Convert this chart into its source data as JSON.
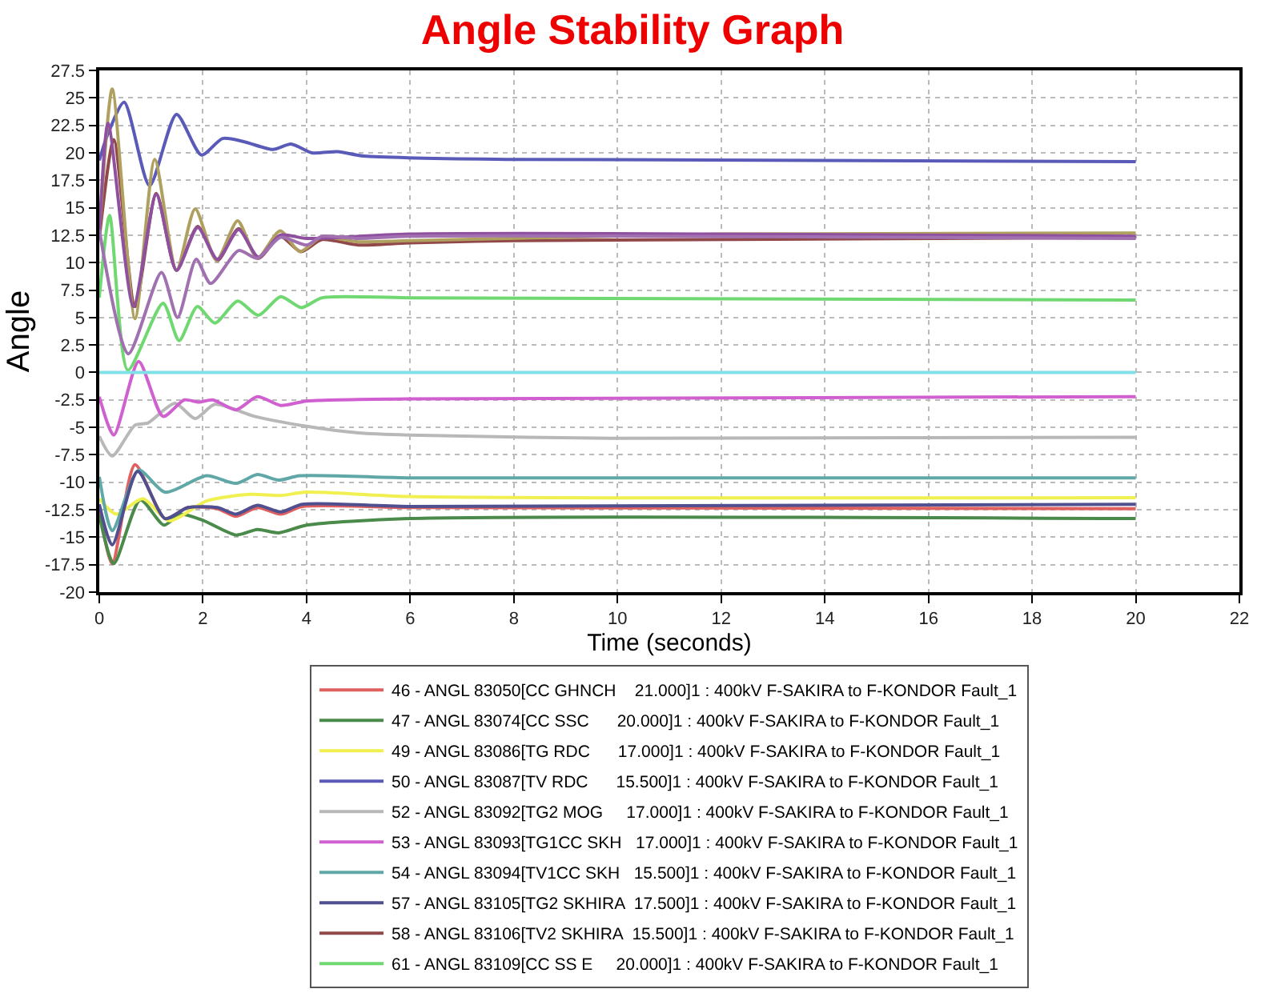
{
  "chart_data": {
    "type": "line",
    "title": "Angle Stability Graph",
    "xlabel": "Time (seconds)",
    "ylabel": "Angle",
    "xlim": [
      0,
      22
    ],
    "xticks": [
      0,
      2,
      4,
      6,
      8,
      10,
      12,
      14,
      16,
      18,
      20,
      22
    ],
    "ylim": [
      -20,
      27.5
    ],
    "yticks": [
      -20,
      -17.5,
      -15,
      -12.5,
      -10,
      -7.5,
      -5,
      -2.5,
      0,
      2.5,
      5,
      7.5,
      10,
      12.5,
      15,
      17.5,
      20,
      22.5,
      25,
      27.5
    ],
    "grid": true,
    "legend": "bottom",
    "marker": "none",
    "line_style": "solid",
    "series": [
      {
        "name": "46 - ANGL 83050[CC GHNCH    21.000]1 : 400kV F-SAKIRA to F-KONDOR Fault_1",
        "color": "#e06060",
        "x": [
          0,
          0.25,
          0.69,
          1.27,
          1.71,
          2.28,
          2.64,
          3.05,
          3.5,
          3.92,
          6,
          20
        ],
        "values": [
          -12.5,
          -17.4,
          -8.4,
          -13.3,
          -12.3,
          -12.4,
          -13.1,
          -12.3,
          -12.9,
          -12.2,
          -12.3,
          -12.4
        ]
      },
      {
        "name": "47 - ANGL 83074[CC SSC      20.000]1 : 400kV F-SAKIRA to F-KONDOR Fault_1",
        "color": "#4a8a4a",
        "x": [
          0,
          0.28,
          0.79,
          1.25,
          1.56,
          2.02,
          2.64,
          3.05,
          3.46,
          4,
          6,
          20
        ],
        "values": [
          -13,
          -17.4,
          -11.6,
          -13.9,
          -12.9,
          -13.5,
          -14.8,
          -14.3,
          -14.6,
          -13.9,
          -13.3,
          -13.3
        ]
      },
      {
        "name": "49 - ANGL 83086[TG RDC      17.000]1 : 400kV F-SAKIRA to F-KONDOR Fault_1",
        "color": "#f0f050",
        "x": [
          0,
          0.33,
          0.84,
          1.35,
          2.07,
          2.9,
          3.5,
          4,
          6,
          20
        ],
        "values": [
          -11.5,
          -12.9,
          -11.5,
          -13.5,
          -11.7,
          -11.1,
          -11.2,
          -10.9,
          -11.3,
          -11.4
        ]
      },
      {
        "name": "50 - ANGL 83087[TV RDC      15.500]1 : 400kV F-SAKIRA to F-KONDOR Fault_1",
        "color": "#5a5ab8",
        "x": [
          0,
          0.15,
          0.48,
          0.97,
          1.49,
          1.97,
          2.38,
          2.8,
          3.35,
          3.7,
          4.1,
          4.6,
          5.1,
          8,
          20
        ],
        "values": [
          19.3,
          21.5,
          24.6,
          17,
          23.5,
          19.8,
          21.3,
          21,
          20.3,
          20.8,
          20,
          20.1,
          19.7,
          19.4,
          19.2
        ]
      },
      {
        "name": "52 - ANGL 83092[TG2 MOG     17.000]1 : 400kV F-SAKIRA to F-KONDOR Fault_1",
        "color": "#b8b8b8",
        "x": [
          0,
          0.25,
          0.69,
          0.94,
          1.46,
          1.85,
          2.23,
          3,
          4,
          5,
          6,
          10,
          20
        ],
        "values": [
          -5.8,
          -7.6,
          -4.8,
          -4.6,
          -2.8,
          -4.2,
          -2.9,
          -4,
          -4.9,
          -5.5,
          -5.7,
          -6,
          -5.9
        ]
      },
      {
        "name": "53 - ANGL 83093[TG1CC SKH   17.000]1 : 400kV F-SAKIRA to F-KONDOR Fault_1",
        "color": "#d060d0",
        "x": [
          0,
          0.28,
          0.76,
          1.23,
          1.64,
          1.92,
          2.19,
          2.64,
          3.05,
          3.5,
          4,
          6,
          20
        ],
        "values": [
          -2.2,
          -5.7,
          1,
          -4,
          -2.5,
          -2.7,
          -2.5,
          -3.4,
          -2.2,
          -3,
          -2.6,
          -2.4,
          -2.2
        ]
      },
      {
        "name": "54 - ANGL 83094[TV1CC SKH   15.500]1 : 400kV F-SAKIRA to F-KONDOR Fault_1",
        "color": "#60a8a8",
        "x": [
          0,
          0.25,
          0.76,
          1.27,
          2.07,
          2.64,
          3.05,
          3.46,
          3.87,
          6,
          20
        ],
        "values": [
          -9.5,
          -14.4,
          -8.9,
          -10.9,
          -9.4,
          -10.1,
          -9.3,
          -9.8,
          -9.4,
          -9.6,
          -9.6
        ]
      },
      {
        "name": "57 - ANGL 83105[TG2 SKHIRA  17.500]1 : 400kV F-SAKIRA to F-KONDOR Fault_1",
        "color": "#505090",
        "x": [
          0,
          0.25,
          0.74,
          1.27,
          1.71,
          2.28,
          2.64,
          3.05,
          3.5,
          3.92,
          6,
          20
        ],
        "values": [
          -12,
          -15.7,
          -9,
          -13.3,
          -12.3,
          -12.3,
          -12.9,
          -12.1,
          -12.7,
          -12,
          -12.2,
          -12
        ]
      },
      {
        "name": "58 - ANGL 83106[TV2 SKHIRA  15.500]1 : 400kV F-SAKIRA to F-KONDOR Fault_1",
        "color": "#904848",
        "x": [
          0,
          0.28,
          0.69,
          1.1,
          1.49,
          1.9,
          2.28,
          2.69,
          3.07,
          3.49,
          3.89,
          4.3,
          5,
          6,
          8,
          20
        ],
        "values": [
          12.2,
          21.2,
          6,
          16.3,
          9.3,
          13.3,
          10.2,
          13.1,
          10.4,
          12.4,
          11,
          12.1,
          11.6,
          11.8,
          12,
          12.3
        ]
      },
      {
        "name": "61 - ANGL 83109[CC SS E     20.000]1 : 400kV F-SAKIRA to F-KONDOR Fault_1",
        "color": "#70d870",
        "x": [
          0,
          0.2,
          0.55,
          1.23,
          1.54,
          1.89,
          2.23,
          2.67,
          3.07,
          3.5,
          3.9,
          4.3,
          6,
          20
        ],
        "values": [
          6.8,
          14.3,
          0.2,
          6.3,
          2.9,
          6,
          4.5,
          6.5,
          5.2,
          6.9,
          5.9,
          6.8,
          6.8,
          6.6
        ]
      },
      {
        "color": "#b0a060",
        "x": [
          0,
          0.25,
          0.69,
          1.07,
          1.49,
          1.85,
          2.26,
          2.67,
          3.05,
          3.49,
          3.87,
          4.28,
          5,
          6,
          12,
          20
        ],
        "values": [
          12.5,
          25.8,
          4.9,
          19.4,
          9.3,
          14.9,
          10.2,
          13.8,
          10.4,
          12.9,
          11,
          12.3,
          11.9,
          12,
          12.6,
          12.7
        ]
      },
      {
        "color": "#9050a0",
        "x": [
          0,
          0.17,
          0.66,
          1.1,
          1.49,
          1.9,
          2.28,
          2.69,
          3.07,
          3.49,
          4,
          6,
          20
        ],
        "values": [
          12.5,
          22.7,
          6,
          16.2,
          9.3,
          13.2,
          10.3,
          13,
          10.5,
          12.5,
          12.2,
          12.6,
          12.4
        ]
      },
      {
        "color": "#a070b0",
        "x": [
          0,
          0.56,
          1.2,
          1.51,
          1.87,
          2.15,
          2.69,
          3.05,
          3.5,
          4,
          4.3,
          5,
          6,
          20
        ],
        "values": [
          13,
          1.7,
          9.1,
          5,
          10.3,
          8.1,
          11.1,
          10.4,
          12.3,
          11.6,
          12.4,
          12.2,
          12.4,
          12.2
        ]
      },
      {
        "color": "#80e0e8",
        "x": [
          0,
          20
        ],
        "values": [
          0,
          0
        ]
      }
    ]
  }
}
